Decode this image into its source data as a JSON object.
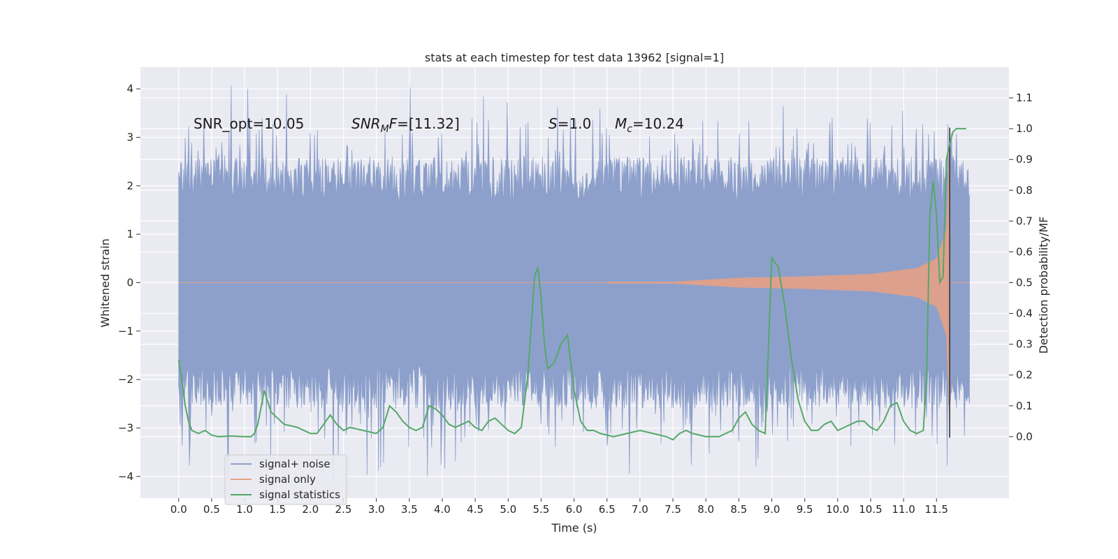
{
  "chart_data": {
    "type": "line",
    "title": "stats at each timestep for test data 13962 [signal=1]",
    "xlabel": "Time (s)",
    "ylabel": "Whitened strain",
    "y2label": "Detection probability/MF",
    "xlim": [
      -0.58,
      12.6
    ],
    "ylim": [
      -4.45,
      4.45
    ],
    "y2lim": [
      -0.2,
      1.2
    ],
    "xticks": [
      0.0,
      0.5,
      1.0,
      1.5,
      2.0,
      2.5,
      3.0,
      3.5,
      4.0,
      4.5,
      5.0,
      5.5,
      6.0,
      6.5,
      7.0,
      7.5,
      8.0,
      8.5,
      9.0,
      9.5,
      10.0,
      10.5,
      11.0,
      11.5
    ],
    "xtick_labels": [
      "0.0",
      "0.5",
      "1.0",
      "1.5",
      "2.0",
      "2.5",
      "3.0",
      "3.5",
      "4.0",
      "4.5",
      "5.0",
      "5.5",
      "6.0",
      "6.5",
      "7.0",
      "7.5",
      "8.0",
      "8.5",
      "9.0",
      "9.5",
      "10.0",
      "10.5",
      "11.0",
      "11.5"
    ],
    "yticks": [
      -4,
      -3,
      -2,
      -1,
      0,
      1,
      2,
      3,
      4
    ],
    "ytick_labels": [
      "−4",
      "−3",
      "−2",
      "−1",
      "0",
      "1",
      "2",
      "3",
      "4"
    ],
    "y2ticks": [
      0.0,
      0.1,
      0.2,
      0.3,
      0.4,
      0.5,
      0.6,
      0.7,
      0.8,
      0.9,
      1.0,
      1.1
    ],
    "y2tick_labels": [
      "0.0",
      "0.1",
      "0.2",
      "0.3",
      "0.4",
      "0.5",
      "0.6",
      "0.7",
      "0.8",
      "0.9",
      "1.0",
      "1.1"
    ],
    "grid": true,
    "legend_position": "lower-left",
    "background": "#eaeaf2",
    "annotations": [
      {
        "id": "snr-opt",
        "text": "SNR_opt=10.05"
      },
      {
        "id": "snr-mf",
        "text": "=[11.32]"
      },
      {
        "id": "s",
        "text": "=1.0"
      },
      {
        "id": "mc",
        "text": "=10.24"
      }
    ],
    "marker_line_x": 11.7,
    "series": [
      {
        "name": "signal+ noise",
        "color": "#8da0cb",
        "axis": "left",
        "x_range": [
          0.0,
          12.0
        ],
        "envelope": "noise",
        "core_band": [
          -1.28,
          1.28
        ],
        "typical_peak": [
          2.2,
          -2.2
        ],
        "max_abs": 4.1
      },
      {
        "name": "signal only",
        "color": "#e5a085",
        "axis": "left",
        "x_range": [
          0.0,
          12.0
        ],
        "envelope": "chirp",
        "amplitude_at": [
          [
            0.0,
            0.0
          ],
          [
            7.5,
            0.02
          ],
          [
            8.5,
            0.1
          ],
          [
            9.5,
            0.13
          ],
          [
            10.5,
            0.18
          ],
          [
            11.2,
            0.3
          ],
          [
            11.5,
            0.5
          ],
          [
            11.65,
            1.1
          ],
          [
            11.7,
            3.2
          ]
        ]
      },
      {
        "name": "signal statistics",
        "color": "#55a868",
        "axis": "right",
        "x": [
          0.0,
          0.05,
          0.1,
          0.15,
          0.2,
          0.3,
          0.4,
          0.5,
          0.6,
          0.8,
          1.0,
          1.1,
          1.15,
          1.2,
          1.3,
          1.4,
          1.5,
          1.6,
          1.8,
          2.0,
          2.1,
          2.2,
          2.3,
          2.4,
          2.5,
          2.6,
          2.8,
          3.0,
          3.1,
          3.2,
          3.3,
          3.4,
          3.5,
          3.6,
          3.7,
          3.8,
          3.9,
          4.0,
          4.1,
          4.2,
          4.3,
          4.4,
          4.5,
          4.6,
          4.7,
          4.8,
          4.9,
          5.0,
          5.1,
          5.2,
          5.3,
          5.4,
          5.45,
          5.5,
          5.55,
          5.6,
          5.7,
          5.8,
          5.9,
          6.0,
          6.1,
          6.2,
          6.3,
          6.4,
          6.6,
          6.8,
          7.0,
          7.2,
          7.4,
          7.5,
          7.6,
          7.7,
          7.8,
          8.0,
          8.2,
          8.3,
          8.4,
          8.5,
          8.6,
          8.7,
          8.8,
          8.9,
          9.0,
          9.1,
          9.2,
          9.3,
          9.4,
          9.5,
          9.6,
          9.7,
          9.8,
          9.9,
          10.0,
          10.1,
          10.2,
          10.3,
          10.4,
          10.5,
          10.6,
          10.7,
          10.8,
          10.9,
          11.0,
          11.1,
          11.2,
          11.3,
          11.35,
          11.4,
          11.45,
          11.5,
          11.55,
          11.6,
          11.65,
          11.7,
          11.75,
          11.8,
          11.85,
          11.9,
          11.95
        ],
        "values": [
          0.25,
          0.18,
          0.1,
          0.05,
          0.02,
          0.01,
          0.02,
          0.005,
          0.0,
          0.002,
          0.0,
          0.0,
          0.01,
          0.04,
          0.15,
          0.08,
          0.06,
          0.04,
          0.03,
          0.01,
          0.01,
          0.04,
          0.07,
          0.04,
          0.02,
          0.03,
          0.02,
          0.01,
          0.03,
          0.1,
          0.08,
          0.05,
          0.03,
          0.02,
          0.03,
          0.1,
          0.09,
          0.07,
          0.04,
          0.03,
          0.04,
          0.05,
          0.03,
          0.02,
          0.05,
          0.06,
          0.04,
          0.02,
          0.01,
          0.03,
          0.2,
          0.52,
          0.55,
          0.45,
          0.3,
          0.22,
          0.24,
          0.3,
          0.33,
          0.15,
          0.05,
          0.02,
          0.02,
          0.01,
          0.0,
          0.01,
          0.02,
          0.01,
          0.0,
          -0.01,
          0.01,
          0.02,
          0.01,
          0.0,
          0.0,
          0.01,
          0.02,
          0.06,
          0.08,
          0.04,
          0.02,
          0.01,
          0.58,
          0.55,
          0.42,
          0.25,
          0.12,
          0.05,
          0.02,
          0.02,
          0.04,
          0.05,
          0.02,
          0.03,
          0.04,
          0.05,
          0.05,
          0.03,
          0.02,
          0.05,
          0.1,
          0.11,
          0.05,
          0.02,
          0.01,
          0.02,
          0.2,
          0.72,
          0.83,
          0.72,
          0.5,
          0.52,
          0.9,
          0.95,
          0.99,
          1.0,
          1.0,
          1.0,
          1.0
        ]
      }
    ]
  }
}
